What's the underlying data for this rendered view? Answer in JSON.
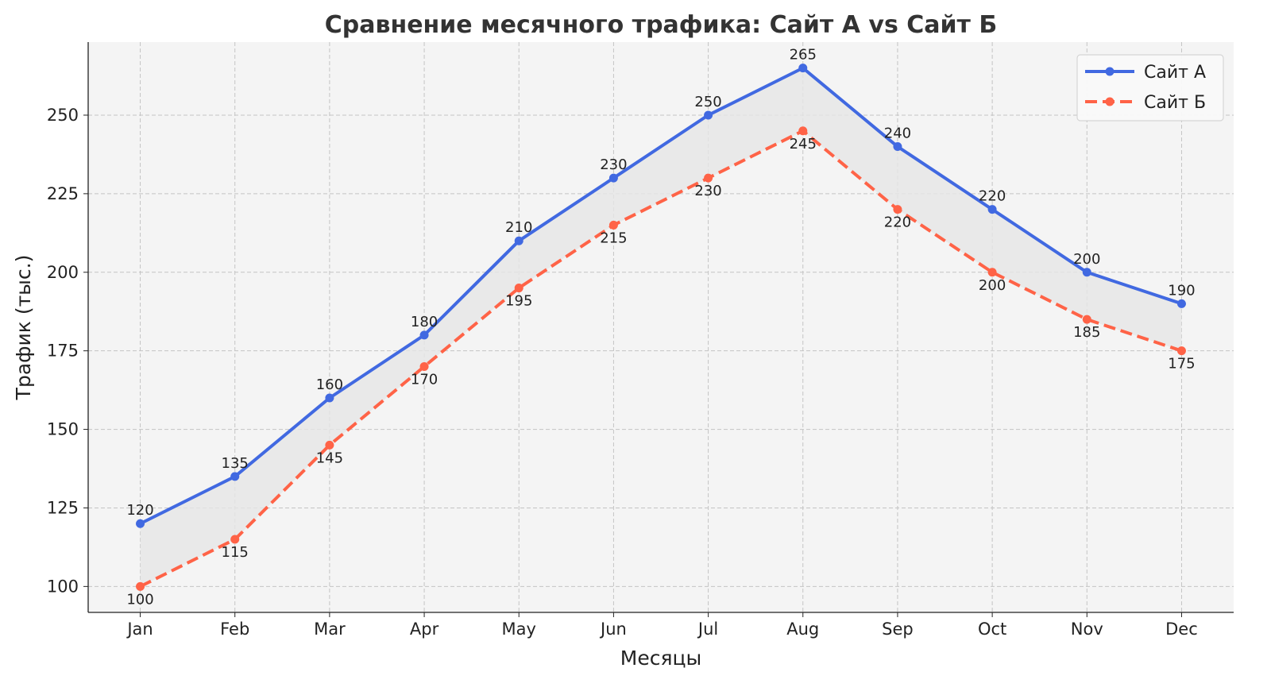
{
  "chart_data": {
    "type": "line",
    "title": "Сравнение месячного трафика: Сайт А vs Сайт Б",
    "xlabel": "Месяцы",
    "ylabel": "Трафик (тыс.)",
    "categories": [
      "Jan",
      "Feb",
      "Mar",
      "Apr",
      "May",
      "Jun",
      "Jul",
      "Aug",
      "Sep",
      "Oct",
      "Nov",
      "Dec"
    ],
    "series": [
      {
        "name": "Сайт А",
        "values": [
          120,
          135,
          160,
          180,
          210,
          230,
          250,
          265,
          240,
          220,
          200,
          190
        ],
        "color": "#4169E1",
        "linestyle": "solid",
        "marker": "circle"
      },
      {
        "name": "Сайт Б",
        "values": [
          100,
          115,
          145,
          170,
          195,
          215,
          230,
          245,
          220,
          200,
          185,
          175
        ],
        "color": "#FF6347",
        "linestyle": "dashed",
        "marker": "circle"
      }
    ],
    "fill_between": {
      "color": "#e6e6e6"
    },
    "yticks": [
      100,
      125,
      150,
      175,
      200,
      225,
      250
    ],
    "ylim": [
      91.75,
      273.25
    ],
    "grid": true,
    "legend": "top-right",
    "data_labels": true,
    "background": "#f4f4f4"
  }
}
